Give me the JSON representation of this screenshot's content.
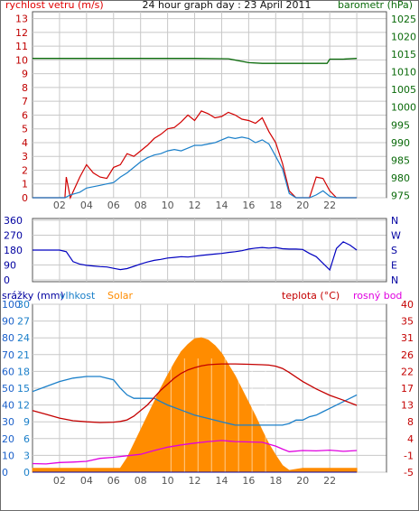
{
  "colors": {
    "wind": "#e00000",
    "gust": "#d10000",
    "humidity_line": "#1a7fc9",
    "pressure": "#0a6a0a",
    "wind_dir": "#0000c0",
    "temperature": "#c40000",
    "dew_point": "#e000e0",
    "solar": "#ff8c00",
    "precip": "#0000a0",
    "grid": "#c8c8c8",
    "axis": "#555555"
  },
  "chart_data": [
    {
      "type": "line",
      "title": "24 hour graph day : 23 April 2011",
      "ylabel_left": "rychlost vetru (m/s)",
      "ylabel_right": "barometr (hPa)",
      "x_tick_labels": [
        "02",
        "04",
        "06",
        "08",
        "10",
        "12",
        "14",
        "16",
        "18",
        "20",
        "22"
      ],
      "y_left_ticks": [
        "0",
        "1",
        "2",
        "3",
        "4",
        "5",
        "6",
        "7",
        "8",
        "9",
        "10",
        "11",
        "12",
        "13"
      ],
      "y_right_ticks": [
        "975",
        "980",
        "985",
        "990",
        "995",
        "1000",
        "1005",
        "1010",
        "1015",
        "1020",
        "1025"
      ],
      "ylim_left": [
        0,
        13.5
      ],
      "ylim_right": [
        974.4,
        1027
      ],
      "grid": true,
      "series": [
        {
          "name": "wind speed",
          "axis": "left",
          "x": [
            0,
            2.4,
            2.8,
            3.5,
            4,
            4.5,
            5,
            5.5,
            6,
            6.5,
            7,
            7.5,
            8,
            8.5,
            9,
            9.5,
            10,
            10.5,
            11,
            11.5,
            12,
            12.5,
            13,
            13.5,
            14,
            14.5,
            15,
            15.5,
            16,
            16.5,
            17,
            17.5,
            18,
            18.5,
            19,
            19.5,
            20,
            20.5,
            21,
            21.5,
            22,
            22.5,
            24
          ],
          "y": [
            0,
            0,
            0.2,
            0.4,
            0.7,
            0.8,
            0.9,
            1.0,
            1.1,
            1.5,
            1.8,
            2.2,
            2.6,
            2.9,
            3.1,
            3.2,
            3.4,
            3.5,
            3.4,
            3.6,
            3.8,
            3.8,
            3.9,
            4.0,
            4.2,
            4.4,
            4.3,
            4.4,
            4.3,
            4.0,
            4.2,
            3.9,
            3.0,
            2.1,
            0.3,
            0,
            0,
            0,
            0.2,
            0.5,
            0.1,
            0,
            0
          ]
        },
        {
          "name": "wind gust",
          "axis": "left",
          "x": [
            0,
            2.4,
            2.5,
            2.8,
            3.5,
            4,
            4.5,
            5,
            5.5,
            6,
            6.5,
            7,
            7.5,
            8,
            8.5,
            9,
            9.5,
            10,
            10.5,
            11,
            11.5,
            12,
            12.5,
            13,
            13.5,
            14,
            14.5,
            15,
            15.5,
            16,
            16.5,
            17,
            17.5,
            18,
            18.5,
            19,
            19.5,
            20,
            20.5,
            21,
            21.5,
            22,
            22.5,
            24
          ],
          "y": [
            0,
            0,
            1.5,
            0,
            1.5,
            2.4,
            1.8,
            1.5,
            1.4,
            2.2,
            2.4,
            3.2,
            3.0,
            3.4,
            3.8,
            4.3,
            4.6,
            5.0,
            5.1,
            5.5,
            6.0,
            5.6,
            6.3,
            6.1,
            5.8,
            5.9,
            6.2,
            6.0,
            5.7,
            5.6,
            5.4,
            5.8,
            4.8,
            4.0,
            2.5,
            0.5,
            0,
            0,
            0,
            1.5,
            1.4,
            0.5,
            0,
            0
          ]
        },
        {
          "name": "pressure",
          "axis": "right",
          "x": [
            0,
            12,
            14.5,
            16,
            17,
            18,
            21.8,
            22,
            23,
            24
          ],
          "y": [
            1013.8,
            1013.8,
            1013.7,
            1012.6,
            1012.4,
            1012.4,
            1012.4,
            1013.6,
            1013.6,
            1013.8
          ]
        }
      ]
    },
    {
      "type": "line",
      "title": "",
      "ylabel_right": "",
      "x_tick_labels": [],
      "y_left_ticks": [
        "360",
        "270",
        "180",
        "90",
        "0"
      ],
      "y_left_values": [
        360,
        270,
        180,
        90,
        0
      ],
      "y_right_ticks": [
        "N",
        "W",
        "S",
        "E",
        "N"
      ],
      "ylim": [
        0,
        360
      ],
      "grid": true,
      "series": [
        {
          "name": "wind direction",
          "x": [
            0,
            0.5,
            1,
            1.5,
            2,
            2.5,
            3,
            3.5,
            4,
            4.5,
            5,
            5.5,
            6,
            6.5,
            7,
            7.5,
            8,
            8.5,
            9,
            9.5,
            10,
            10.5,
            11,
            11.5,
            12,
            12.5,
            13,
            13.5,
            14,
            14.5,
            15,
            15.5,
            16,
            16.5,
            17,
            17.5,
            18,
            18.5,
            19,
            19.5,
            20,
            20.5,
            21,
            21.5,
            22,
            22.5,
            23,
            23.5,
            24
          ],
          "y": [
            180,
            180,
            180,
            180,
            180,
            170,
            110,
            95,
            88,
            84,
            80,
            78,
            70,
            62,
            68,
            82,
            96,
            108,
            118,
            124,
            132,
            136,
            140,
            138,
            143,
            148,
            152,
            156,
            160,
            166,
            170,
            176,
            186,
            192,
            196,
            192,
            196,
            188,
            186,
            186,
            184,
            160,
            140,
            100,
            60,
            190,
            230,
            210,
            180
          ]
        }
      ]
    },
    {
      "type": "area",
      "title": "",
      "labels_top": [
        "srážky (mm)",
        "vlhkost",
        "Solar",
        "teplota (°C)",
        "rosný bod"
      ],
      "x_tick_labels": [
        "02",
        "04",
        "06",
        "08",
        "10",
        "12",
        "14",
        "16",
        "18",
        "20",
        "22"
      ],
      "y_axis_precip_ticks": [
        "0",
        "10",
        "20",
        "30",
        "40",
        "50",
        "60",
        "70",
        "80",
        "90",
        "100"
      ],
      "y_axis_solar_ticks": [
        "0",
        "3",
        "6",
        "9",
        "12",
        "15",
        "18",
        "21",
        "24",
        "27",
        "30"
      ],
      "y_axis_temp_ticks": [
        "-5",
        "-1",
        "4",
        "8",
        "13",
        "17",
        "22",
        "26",
        "31",
        "35",
        "40"
      ],
      "precip_ylim": [
        0,
        100
      ],
      "solar_ylim": [
        0,
        30
      ],
      "temp_ylim": [
        -5,
        40
      ],
      "grid": true,
      "series": [
        {
          "name": "temperature",
          "axis": "temp",
          "x": [
            0,
            1,
            2,
            3,
            4,
            5,
            6,
            6.5,
            7,
            7.5,
            8,
            8.5,
            9,
            9.5,
            10,
            10.5,
            11,
            11.5,
            12,
            12.5,
            13,
            13.5,
            14,
            15,
            16,
            17,
            17.5,
            18,
            18.5,
            19,
            20,
            21,
            22,
            23,
            24
          ],
          "y": [
            11.5,
            10.5,
            9.5,
            8.8,
            8.5,
            8.3,
            8.4,
            8.6,
            9.0,
            10.0,
            11.5,
            13.0,
            15.0,
            17.0,
            18.6,
            20.2,
            21.5,
            22.4,
            23.0,
            23.5,
            23.8,
            23.9,
            24.0,
            24.0,
            23.9,
            23.8,
            23.7,
            23.4,
            22.8,
            21.7,
            19.3,
            17.3,
            15.6,
            14.3,
            12.9
          ]
        },
        {
          "name": "humidity",
          "axis": "precip",
          "x": [
            0,
            1,
            2,
            3,
            4,
            5,
            6,
            6.5,
            7,
            7.5,
            8,
            8.5,
            9,
            9.5,
            10,
            11,
            12,
            13,
            14,
            15,
            16,
            17,
            18,
            18.5,
            19,
            19.5,
            20,
            20.5,
            21,
            21.5,
            22,
            23,
            24
          ],
          "y": [
            48,
            51,
            54,
            56,
            57,
            57,
            55,
            50,
            46,
            44,
            44,
            44,
            44,
            42,
            40,
            37,
            34,
            32,
            30,
            28,
            28,
            28,
            28,
            28,
            29,
            31,
            31,
            33,
            34,
            36,
            38,
            42,
            46
          ]
        },
        {
          "name": "dew point",
          "axis": "temp",
          "x": [
            0,
            1,
            2,
            3,
            4,
            5,
            6,
            7,
            8,
            9,
            10,
            11,
            12,
            13,
            14,
            15,
            16,
            17,
            17.5,
            18,
            18.5,
            19,
            20,
            21,
            22,
            23,
            24
          ],
          "y": [
            -2.7,
            -2.8,
            -2.4,
            -2.3,
            -2.1,
            -1.3,
            -1.0,
            -0.6,
            -0.2,
            0.8,
            1.7,
            2.3,
            2.8,
            3.2,
            3.5,
            3.2,
            3.1,
            3.0,
            2.5,
            2.0,
            1.2,
            0.5,
            0.8,
            0.7,
            0.9,
            0.6,
            0.8
          ]
        },
        {
          "name": "Solar",
          "axis": "solar",
          "x": [
            0,
            6.5,
            7,
            7.5,
            8,
            8.5,
            9,
            9.5,
            10,
            10.5,
            11,
            11.5,
            12,
            12.5,
            13,
            13.5,
            14,
            14.5,
            15,
            15.5,
            16,
            16.5,
            17,
            17.5,
            18,
            18.5,
            19,
            20,
            24
          ],
          "y": [
            0.7,
            0.7,
            2.5,
            5.0,
            7.5,
            10.0,
            12.5,
            15.0,
            17.3,
            19.5,
            21.5,
            22.8,
            23.8,
            24.0,
            23.6,
            22.6,
            21.2,
            19.2,
            17.2,
            14.8,
            12.4,
            10.0,
            7.4,
            5.0,
            3.0,
            1.2,
            0.3,
            0.7,
            0.7
          ]
        },
        {
          "name": "srážky",
          "axis": "precip",
          "x": [
            0,
            24
          ],
          "y": [
            0,
            0
          ]
        }
      ]
    }
  ]
}
